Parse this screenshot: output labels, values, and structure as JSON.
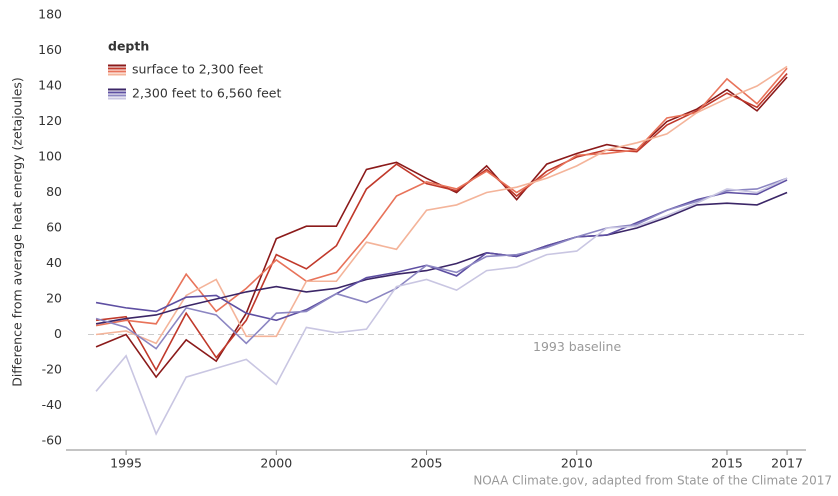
{
  "chart_data": {
    "type": "line",
    "ylabel": "Difference from average heat energy (zetajoules)",
    "legend_title": "depth",
    "legend": "upper-left",
    "source": "NOAA Climate.gov, adapted from State of the Climate 2017",
    "baseline": {
      "value": 0,
      "label": "1993 baseline"
    },
    "x": [
      1994,
      1995,
      1996,
      1997,
      1998,
      1999,
      2000,
      2001,
      2002,
      2003,
      2004,
      2005,
      2006,
      2007,
      2008,
      2009,
      2010,
      2011,
      2012,
      2013,
      2014,
      2015,
      2016,
      2017
    ],
    "xlim": [
      1993,
      2017.63
    ],
    "xticks": [
      1995,
      2000,
      2005,
      2010,
      2015,
      2017
    ],
    "ylim": [
      -60,
      180
    ],
    "yticks": [
      -60,
      -40,
      -20,
      0,
      20,
      40,
      60,
      80,
      100,
      120,
      140,
      160,
      180
    ],
    "series": [
      {
        "name": "surface to 2,300 feet",
        "colors": [
          "#8b1a1a",
          "#c0392b",
          "#e8735a",
          "#f4b49a"
        ],
        "datasets": [
          [
            -7,
            0,
            -24,
            -3,
            -15,
            12,
            54,
            61,
            61,
            93,
            97,
            88,
            80,
            95,
            76,
            96,
            102,
            107,
            104,
            120,
            127,
            138,
            126,
            145
          ],
          [
            8,
            10,
            -20,
            12,
            -13,
            8,
            45,
            37,
            50,
            82,
            96,
            85,
            81,
            93,
            78,
            92,
            100,
            104,
            103,
            118,
            126,
            136,
            128,
            147
          ],
          [
            5,
            8,
            6,
            34,
            13,
            26,
            42,
            30,
            35,
            55,
            78,
            86,
            82,
            92,
            80,
            90,
            101,
            102,
            104,
            122,
            125,
            144,
            130,
            150
          ],
          [
            0,
            2,
            -5,
            22,
            31,
            -1,
            -1,
            30,
            30,
            52,
            48,
            70,
            73,
            80,
            83,
            88,
            95,
            104,
            108,
            113,
            125,
            133,
            140,
            151
          ]
        ]
      },
      {
        "name": "2,300 feet to 6,560 feet",
        "colors": [
          "#3b2667",
          "#5e4fa2",
          "#8c86c2",
          "#c9c6e2"
        ],
        "datasets": [
          [
            6,
            9,
            11,
            16,
            20,
            24,
            27,
            24,
            26,
            31,
            34,
            36,
            40,
            46,
            44,
            50,
            55,
            56,
            60,
            66,
            73,
            74,
            73,
            80
          ],
          [
            18,
            15,
            13,
            21,
            22,
            12,
            8,
            14,
            23,
            32,
            35,
            39,
            33,
            46,
            44,
            50,
            55,
            56,
            63,
            70,
            76,
            80,
            79,
            87
          ],
          [
            9,
            4,
            -8,
            15,
            11,
            -5,
            12,
            13,
            23,
            18,
            26,
            39,
            35,
            44,
            45,
            49,
            55,
            60,
            62,
            70,
            75,
            81,
            82,
            88
          ],
          [
            -32,
            -12,
            -56,
            -24,
            -19,
            -14,
            -28,
            4,
            1,
            3,
            27,
            31,
            25,
            36,
            38,
            45,
            47,
            60,
            61,
            67,
            74,
            82,
            80,
            88
          ]
        ]
      }
    ]
  }
}
